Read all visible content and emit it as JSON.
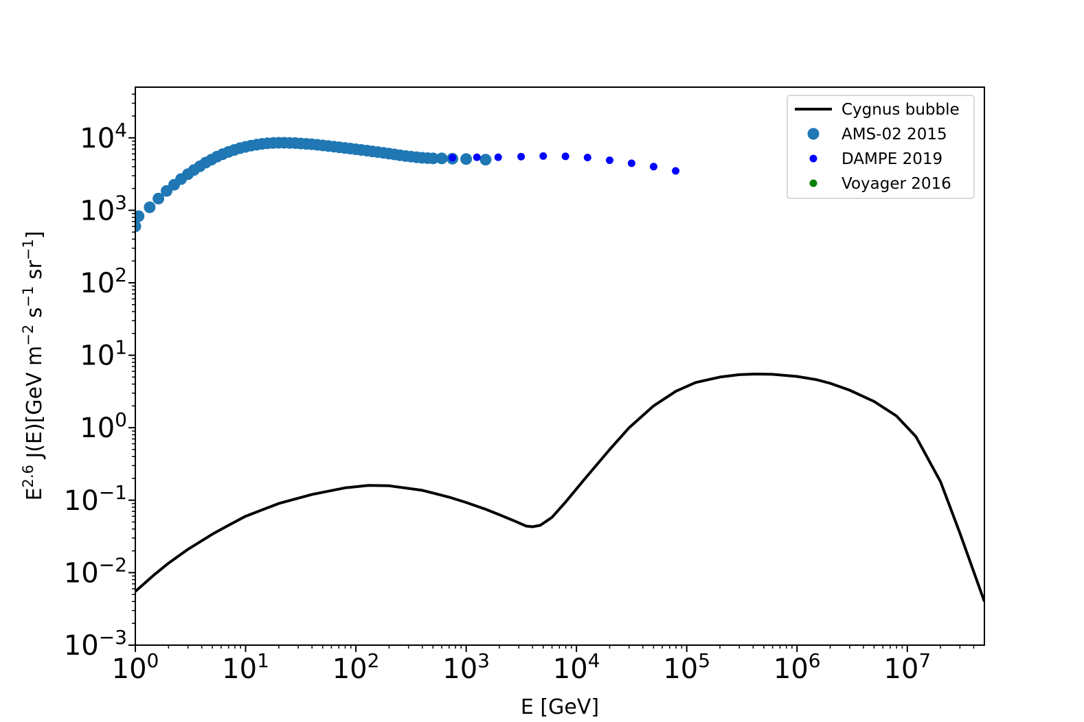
{
  "chart_data": {
    "type": "scatter",
    "xlabel": "E [GeV]",
    "ylabel": {
      "prefix": "E",
      "prefix_sup": "2.6",
      "body": " J(E)[GeV m",
      "m_sup": "−2",
      "s_text": " s",
      "s_sup": "−1",
      "sr_text": " sr",
      "sr_sup": "−1",
      "suffix": "]"
    },
    "xscale": "log",
    "yscale": "log",
    "xlim": [
      1,
      50000000
    ],
    "ylim": [
      0.001,
      50000
    ],
    "x_ticks": [
      {
        "value": 1,
        "base": "10",
        "exp": "0"
      },
      {
        "value": 10,
        "base": "10",
        "exp": "1"
      },
      {
        "value": 100,
        "base": "10",
        "exp": "2"
      },
      {
        "value": 1000,
        "base": "10",
        "exp": "3"
      },
      {
        "value": 10000,
        "base": "10",
        "exp": "4"
      },
      {
        "value": 100000,
        "base": "10",
        "exp": "5"
      },
      {
        "value": 1000000,
        "base": "10",
        "exp": "6"
      },
      {
        "value": 10000000,
        "base": "10",
        "exp": "7"
      }
    ],
    "y_ticks": [
      {
        "value": 0.001,
        "base": "10",
        "exp": "−3"
      },
      {
        "value": 0.01,
        "base": "10",
        "exp": "−2"
      },
      {
        "value": 0.1,
        "base": "10",
        "exp": "−1"
      },
      {
        "value": 1,
        "base": "10",
        "exp": "0"
      },
      {
        "value": 10,
        "base": "10",
        "exp": "1"
      },
      {
        "value": 100,
        "base": "10",
        "exp": "2"
      },
      {
        "value": 1000,
        "base": "10",
        "exp": "3"
      },
      {
        "value": 10000,
        "base": "10",
        "exp": "4"
      }
    ],
    "legend_position": "upper right",
    "grid": false,
    "series": [
      {
        "name": "Cygnus bubble",
        "kind": "line",
        "color": "#000000",
        "x": [
          1,
          1.5,
          2,
          3,
          5,
          7,
          10,
          20,
          40,
          80,
          130,
          200,
          400,
          700,
          1000,
          1500,
          2000,
          2800,
          3500,
          4000,
          4700,
          6000,
          8000,
          12000,
          20000,
          30000,
          50000,
          80000,
          120000,
          200000,
          300000,
          420000,
          600000,
          1000000,
          1500000,
          2000000,
          3000000,
          5000000,
          8000000,
          12000000,
          20000000,
          30000000,
          50000000
        ],
        "y": [
          0.0055,
          0.0095,
          0.0135,
          0.021,
          0.034,
          0.045,
          0.06,
          0.09,
          0.12,
          0.148,
          0.16,
          0.158,
          0.137,
          0.11,
          0.093,
          0.075,
          0.063,
          0.051,
          0.044,
          0.043,
          0.045,
          0.058,
          0.095,
          0.2,
          0.5,
          1.0,
          2.0,
          3.2,
          4.2,
          5.0,
          5.4,
          5.5,
          5.45,
          5.1,
          4.6,
          4.1,
          3.3,
          2.3,
          1.45,
          0.75,
          0.18,
          0.035,
          0.004
        ]
      },
      {
        "name": "AMS-02 2015",
        "kind": "markers",
        "color": "#1f77b4",
        "marker_size": "large",
        "x": [
          1,
          1.07,
          1.35,
          1.62,
          1.92,
          2.25,
          2.6,
          3.0,
          3.4,
          3.85,
          4.35,
          4.9,
          5.5,
          6.2,
          7.0,
          7.9,
          8.9,
          10.0,
          11.2,
          12.6,
          14.1,
          15.8,
          17.8,
          20.0,
          22.4,
          25.1,
          28.2,
          31.6,
          35.5,
          39.8,
          44.7,
          50.1,
          56.2,
          63.1,
          70.8,
          79.4,
          89.1,
          100,
          112,
          126,
          141,
          158,
          178,
          200,
          224,
          251,
          282,
          316,
          355,
          398,
          447,
          501,
          600,
          750,
          1000,
          1500
        ],
        "y": [
          600,
          830,
          1100,
          1450,
          1850,
          2250,
          2700,
          3150,
          3600,
          4050,
          4550,
          5000,
          5500,
          5950,
          6400,
          6800,
          7200,
          7500,
          7800,
          8050,
          8250,
          8400,
          8500,
          8550,
          8550,
          8500,
          8450,
          8350,
          8250,
          8150,
          8000,
          7850,
          7700,
          7550,
          7400,
          7250,
          7100,
          6950,
          6800,
          6650,
          6500,
          6350,
          6200,
          6050,
          5900,
          5750,
          5600,
          5500,
          5400,
          5300,
          5250,
          5200,
          5200,
          5150,
          5100,
          5000
        ]
      },
      {
        "name": "DAMPE 2019",
        "kind": "markers",
        "color": "#0000ff",
        "marker_size": "small",
        "x": [
          750,
          1250,
          1950,
          3150,
          5000,
          7950,
          12600,
          20000,
          31600,
          50100,
          79400
        ],
        "y": [
          5300,
          5400,
          5400,
          5500,
          5600,
          5550,
          5350,
          4900,
          4450,
          4000,
          3500
        ]
      },
      {
        "name": "Voyager 2016",
        "kind": "markers",
        "color": "#008000",
        "marker_size": "small",
        "x": [],
        "y": []
      }
    ]
  }
}
